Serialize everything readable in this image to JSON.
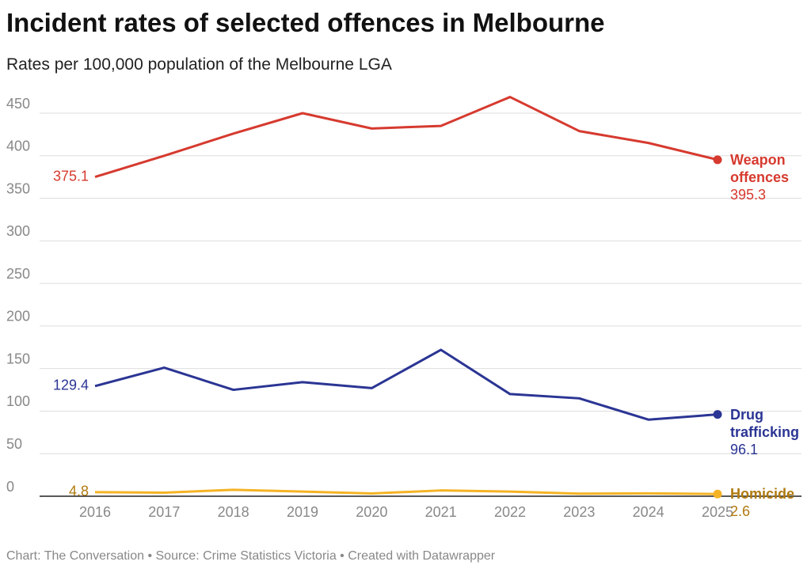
{
  "chart_data": {
    "type": "line",
    "title": "Incident rates of selected offences in Melbourne",
    "subtitle": "Rates per 100,000 population of the Melbourne LGA",
    "source": "Chart: The Conversation • Source: Crime Statistics Victoria • Created with Datawrapper",
    "categories": [
      "2016",
      "2017",
      "2018",
      "2019",
      "2020",
      "2021",
      "2022",
      "2023",
      "2024",
      "2025"
    ],
    "series": [
      {
        "name": "Weapon offences",
        "color": "#d63a2f",
        "text_color": "#d63a2f",
        "values": [
          375.1,
          400,
          426,
          450,
          432,
          435,
          469,
          429,
          415,
          395.3
        ]
      },
      {
        "name": "Drug trafficking",
        "color": "#2b3594",
        "text_color": "#2b3594",
        "values": [
          129.4,
          151,
          125,
          134,
          127,
          172,
          120,
          115,
          90,
          96.1
        ]
      },
      {
        "name": "Homicide",
        "color": "#f5b324",
        "text_color": "#b07a10",
        "values": [
          4.8,
          4.2,
          7.6,
          5.5,
          3.2,
          6.8,
          5.5,
          3.0,
          3.4,
          2.6
        ]
      }
    ],
    "ylim": [
      0,
      450
    ],
    "yticks": [
      0,
      50,
      100,
      150,
      200,
      250,
      300,
      350,
      400,
      450
    ],
    "grid": true
  }
}
